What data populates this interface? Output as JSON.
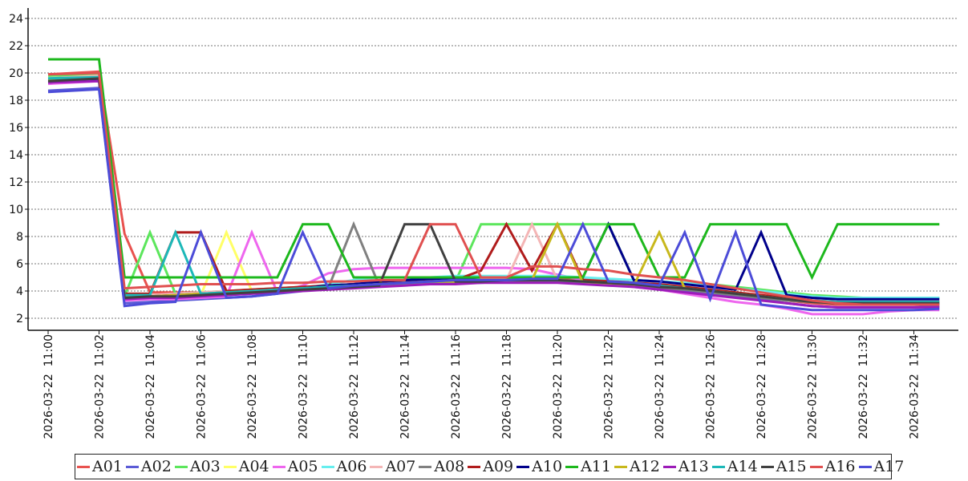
{
  "chart_data": {
    "type": "line",
    "title": "",
    "xlabel": "",
    "ylabel": "",
    "ylim": [
      1,
      25
    ],
    "y_ticks": [
      2,
      4,
      6,
      8,
      10,
      12,
      14,
      16,
      18,
      20,
      22,
      24
    ],
    "grid": "horizontal dotted",
    "legend_position": "bottom",
    "x_tick_labels": [
      "2026-03-22 11:00",
      "2026-03-22 11:02",
      "2026-03-22 11:04",
      "2026-03-22 11:06",
      "2026-03-22 11:08",
      "2026-03-22 11:10",
      "2026-03-22 11:12",
      "2026-03-22 11:14",
      "2026-03-22 11:16",
      "2026-03-22 11:18",
      "2026-03-22 11:20",
      "2026-03-22 11:22",
      "2026-03-22 11:24",
      "2026-03-22 11:26",
      "2026-03-22 11:28",
      "2026-03-22 11:30",
      "2026-03-22 11:32",
      "2026-03-22 11:34"
    ],
    "x": [
      "11:00",
      "11:02",
      "11:03",
      "11:04",
      "11:05",
      "11:06",
      "11:07",
      "11:08",
      "11:09",
      "11:10",
      "11:11",
      "11:12",
      "11:13",
      "11:14",
      "11:15",
      "11:16",
      "11:17",
      "11:18",
      "11:19",
      "11:20",
      "11:21",
      "11:22",
      "11:23",
      "11:24",
      "11:25",
      "11:26",
      "11:27",
      "11:28",
      "11:29",
      "11:30",
      "11:31",
      "11:32",
      "11:33",
      "11:34",
      "11:35"
    ],
    "series": [
      {
        "name": "A01",
        "color": "#e8524f",
        "values": [
          19.9,
          20.1,
          8.2,
          3.9,
          3.9,
          3.9,
          3.9,
          3.9,
          4.0,
          4.2,
          4.4,
          4.5,
          4.6,
          4.6,
          4.7,
          4.7,
          4.8,
          4.8,
          4.9,
          4.9,
          4.9,
          4.8,
          4.6,
          4.4,
          4.2,
          4.0,
          3.7,
          3.5,
          3.3,
          3.1,
          3.0,
          3.0,
          3.0,
          3.0,
          3.0
        ]
      },
      {
        "name": "A02",
        "color": "#5b5bd6",
        "values": [
          18.7,
          18.9,
          3.1,
          3.2,
          3.3,
          3.4,
          3.5,
          3.6,
          3.8,
          4.0,
          4.2,
          4.3,
          4.4,
          4.5,
          4.6,
          4.6,
          4.6,
          4.7,
          4.7,
          4.7,
          4.6,
          4.5,
          4.4,
          4.2,
          4.0,
          3.8,
          3.6,
          3.4,
          3.1,
          2.9,
          2.8,
          2.8,
          2.8,
          2.8,
          2.9
        ]
      },
      {
        "name": "A03",
        "color": "#5ce65c",
        "values": [
          19.8,
          19.9,
          3.6,
          8.3,
          3.8,
          3.9,
          4.0,
          4.1,
          4.2,
          4.3,
          4.4,
          4.5,
          4.6,
          4.6,
          4.7,
          4.7,
          8.9,
          8.9,
          8.9,
          8.9,
          8.9,
          8.9,
          4.8,
          4.7,
          4.6,
          4.5,
          4.3,
          4.1,
          3.9,
          3.7,
          3.6,
          3.5,
          3.5,
          3.5,
          3.5
        ]
      },
      {
        "name": "A04",
        "color": "#ffff66",
        "values": [
          19.6,
          19.7,
          3.5,
          3.6,
          3.6,
          3.7,
          8.3,
          4.0,
          4.0,
          4.1,
          4.2,
          4.3,
          4.4,
          4.5,
          4.6,
          4.6,
          4.7,
          4.7,
          4.7,
          4.7,
          4.7,
          4.6,
          4.5,
          4.4,
          4.2,
          4.0,
          3.8,
          3.6,
          3.4,
          3.2,
          3.1,
          3.1,
          3.1,
          3.1,
          3.2
        ]
      },
      {
        "name": "A05",
        "color": "#ee66ee",
        "values": [
          19.2,
          19.4,
          3.3,
          3.4,
          3.4,
          3.5,
          3.6,
          8.3,
          3.9,
          4.4,
          5.3,
          5.6,
          5.7,
          5.7,
          5.7,
          5.7,
          5.7,
          5.7,
          5.6,
          5.2,
          4.8,
          4.5,
          4.3,
          4.1,
          3.8,
          3.5,
          3.2,
          3.0,
          2.7,
          2.3,
          2.3,
          2.3,
          2.5,
          2.6,
          2.6
        ]
      },
      {
        "name": "A06",
        "color": "#66eeee",
        "values": [
          19.5,
          19.6,
          3.6,
          3.6,
          3.7,
          3.7,
          3.8,
          3.9,
          4.0,
          4.2,
          4.5,
          4.8,
          5.0,
          5.0,
          5.0,
          5.1,
          5.1,
          5.1,
          5.1,
          5.1,
          5.0,
          4.9,
          4.8,
          4.7,
          4.6,
          4.4,
          4.2,
          4.0,
          3.8,
          3.6,
          3.5,
          3.5,
          3.5,
          3.5,
          3.5
        ]
      },
      {
        "name": "A07",
        "color": "#f4b6b6",
        "values": [
          19.6,
          19.8,
          3.7,
          3.7,
          3.8,
          3.9,
          4.0,
          4.1,
          4.2,
          4.3,
          4.4,
          4.5,
          4.6,
          4.7,
          4.8,
          4.8,
          4.8,
          4.8,
          8.9,
          4.8,
          4.7,
          4.6,
          4.5,
          4.4,
          4.2,
          4.0,
          3.8,
          3.6,
          3.4,
          3.3,
          3.2,
          3.2,
          3.2,
          3.2,
          3.2
        ]
      },
      {
        "name": "A08",
        "color": "#808080",
        "values": [
          19.4,
          19.6,
          3.5,
          3.6,
          3.6,
          3.7,
          3.8,
          3.9,
          4.0,
          4.1,
          4.2,
          8.9,
          4.4,
          4.5,
          4.6,
          4.6,
          4.7,
          4.7,
          4.7,
          4.7,
          4.6,
          4.5,
          4.4,
          4.2,
          4.1,
          3.9,
          3.7,
          3.5,
          3.3,
          3.2,
          3.1,
          3.1,
          3.1,
          3.1,
          3.1
        ]
      },
      {
        "name": "A09",
        "color": "#b01c1c",
        "values": [
          19.5,
          19.6,
          3.8,
          3.8,
          8.3,
          8.3,
          4.0,
          4.1,
          4.2,
          4.3,
          4.4,
          4.5,
          4.6,
          4.7,
          4.8,
          4.8,
          5.5,
          8.9,
          5.5,
          8.9,
          4.8,
          4.7,
          4.6,
          4.5,
          4.3,
          4.1,
          3.9,
          3.7,
          3.5,
          3.3,
          3.2,
          3.2,
          3.2,
          3.2,
          3.2
        ]
      },
      {
        "name": "A10",
        "color": "#00008b",
        "values": [
          19.3,
          19.5,
          3.6,
          3.6,
          3.7,
          3.8,
          3.9,
          4.0,
          4.1,
          4.2,
          4.4,
          4.5,
          4.7,
          4.8,
          4.9,
          4.9,
          5.0,
          5.0,
          5.0,
          5.0,
          5.0,
          8.9,
          4.8,
          4.7,
          4.5,
          4.3,
          4.1,
          8.3,
          3.7,
          3.5,
          3.4,
          3.4,
          3.4,
          3.4,
          3.4
        ]
      },
      {
        "name": "A11",
        "color": "#1db81d",
        "values": [
          21.0,
          21.0,
          5.0,
          5.0,
          5.0,
          5.0,
          5.0,
          5.0,
          5.0,
          8.9,
          8.9,
          5.0,
          5.0,
          5.0,
          5.0,
          5.0,
          5.0,
          5.0,
          5.0,
          5.0,
          5.0,
          8.9,
          8.9,
          5.0,
          5.0,
          8.9,
          8.9,
          8.9,
          8.9,
          5.0,
          8.9,
          8.9,
          8.9,
          8.9,
          8.9
        ]
      },
      {
        "name": "A12",
        "color": "#c8b81c",
        "values": [
          19.5,
          19.6,
          3.6,
          3.6,
          3.7,
          3.8,
          3.9,
          4.0,
          4.1,
          4.2,
          4.3,
          4.4,
          4.5,
          4.6,
          4.7,
          4.7,
          4.8,
          4.8,
          4.8,
          8.9,
          4.6,
          4.5,
          4.4,
          8.3,
          4.2,
          4.0,
          3.8,
          3.6,
          3.4,
          3.2,
          3.1,
          3.1,
          3.1,
          3.1,
          3.2
        ]
      },
      {
        "name": "A13",
        "color": "#9c1cb8",
        "values": [
          19.3,
          19.4,
          3.4,
          3.5,
          3.5,
          3.6,
          3.7,
          3.8,
          3.9,
          4.0,
          4.1,
          4.2,
          4.3,
          4.4,
          4.5,
          4.5,
          4.6,
          4.6,
          4.6,
          4.6,
          4.5,
          4.4,
          4.3,
          4.1,
          3.9,
          3.7,
          3.5,
          3.3,
          3.1,
          2.9,
          2.8,
          2.8,
          2.8,
          2.8,
          2.8
        ]
      },
      {
        "name": "A14",
        "color": "#1cb8b8",
        "values": [
          19.6,
          19.7,
          3.7,
          3.7,
          8.3,
          3.8,
          3.9,
          4.0,
          4.1,
          4.2,
          4.3,
          4.4,
          4.5,
          4.6,
          4.7,
          4.8,
          4.8,
          4.8,
          4.8,
          4.8,
          4.7,
          4.6,
          4.5,
          4.4,
          4.2,
          4.0,
          3.8,
          3.6,
          3.4,
          3.3,
          3.2,
          3.2,
          3.2,
          3.2,
          3.2
        ]
      },
      {
        "name": "A15",
        "color": "#404040",
        "values": [
          19.4,
          19.6,
          3.5,
          3.6,
          3.6,
          3.7,
          3.8,
          3.9,
          4.0,
          4.1,
          4.2,
          4.3,
          4.4,
          8.9,
          8.9,
          4.7,
          4.7,
          4.8,
          4.8,
          4.8,
          4.7,
          4.6,
          4.5,
          4.3,
          4.2,
          4.0,
          3.8,
          3.6,
          3.4,
          3.2,
          3.1,
          3.1,
          3.1,
          3.1,
          3.1
        ]
      },
      {
        "name": "A16",
        "color": "#e05050",
        "values": [
          19.9,
          20.0,
          4.2,
          4.3,
          4.4,
          4.5,
          4.5,
          4.5,
          4.6,
          4.6,
          4.7,
          4.7,
          4.8,
          4.8,
          8.9,
          8.9,
          5.0,
          5.0,
          5.8,
          5.8,
          5.6,
          5.5,
          5.2,
          5.0,
          4.8,
          4.5,
          4.2,
          3.9,
          3.6,
          3.3,
          3.1,
          3.0,
          3.0,
          3.0,
          3.0
        ]
      },
      {
        "name": "A17",
        "color": "#4c4cd8",
        "values": [
          18.6,
          18.8,
          2.9,
          3.1,
          3.2,
          8.3,
          3.5,
          3.6,
          3.8,
          8.3,
          4.2,
          4.4,
          4.5,
          4.6,
          4.7,
          4.8,
          4.8,
          4.8,
          4.9,
          4.9,
          8.9,
          4.7,
          4.6,
          4.4,
          8.3,
          3.4,
          8.3,
          3.0,
          2.8,
          2.6,
          2.6,
          2.6,
          2.6,
          2.6,
          2.7
        ]
      }
    ]
  }
}
